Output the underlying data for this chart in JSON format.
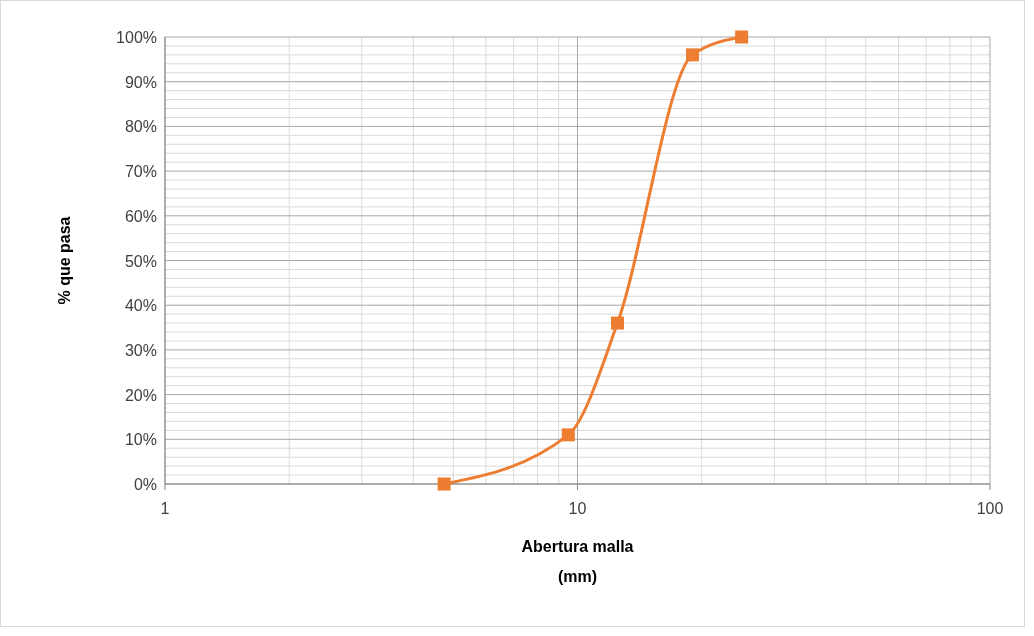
{
  "chart_data": {
    "type": "line",
    "xlabel": "Abertura malla\n(mm)",
    "ylabel": "% que pasa",
    "x": [
      4.75,
      9.5,
      12.5,
      19,
      25
    ],
    "series": [
      {
        "color": "#ed7d31",
        "values": [
          0,
          11,
          36,
          96,
          100
        ]
      }
    ],
    "log": "x",
    "xlim": [
      1,
      100
    ],
    "xticks": [
      1,
      10,
      100
    ],
    "ylim": [
      0,
      100
    ],
    "yticks": [
      {
        "value": 0,
        "label": "0%"
      },
      {
        "value": 10,
        "label": "10%"
      },
      {
        "value": 20,
        "label": "20%"
      },
      {
        "value": 30,
        "label": "30%"
      },
      {
        "value": 40,
        "label": "40%"
      },
      {
        "value": 50,
        "label": "50%"
      },
      {
        "value": 60,
        "label": "60%"
      },
      {
        "value": 70,
        "label": "70%"
      },
      {
        "value": 80,
        "label": "80%"
      },
      {
        "value": 90,
        "label": "90%"
      },
      {
        "value": 100,
        "label": "100%"
      }
    ],
    "grid": true,
    "marker": "square",
    "line_style": "solid"
  }
}
